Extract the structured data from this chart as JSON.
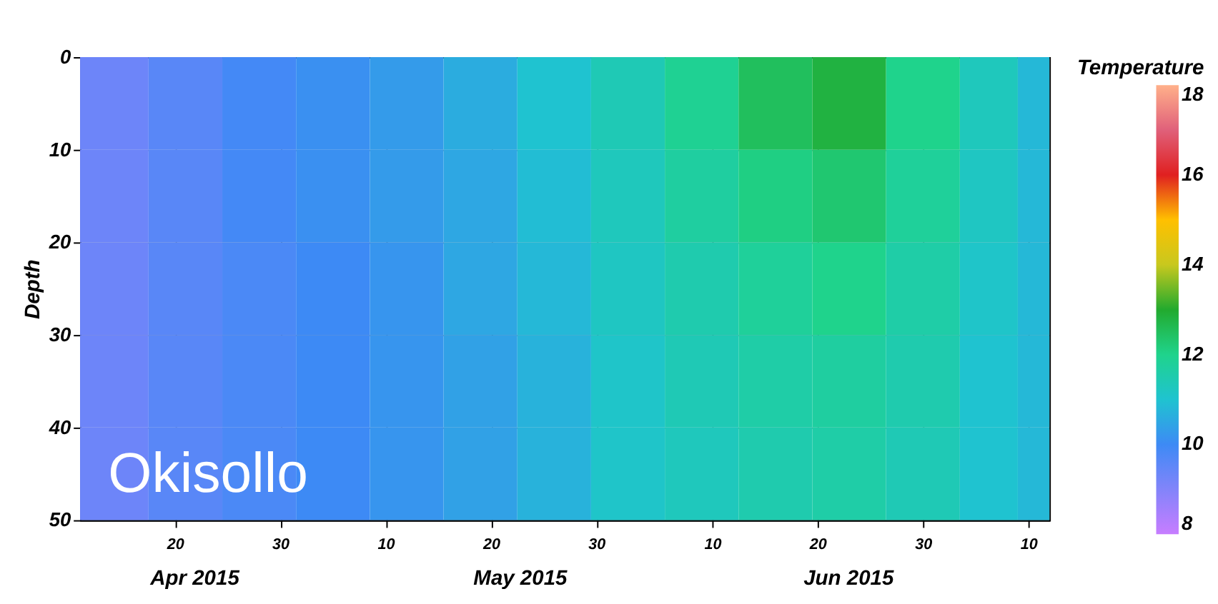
{
  "chart_data": {
    "type": "heatmap",
    "ylabel": "Depth",
    "clabel": "Temperature",
    "x": [
      "2015-04-14",
      "2015-04-21",
      "2015-04-28",
      "2015-05-05",
      "2015-05-12",
      "2015-05-19",
      "2015-05-26",
      "2015-06-02",
      "2015-06-09",
      "2015-06-16",
      "2015-06-23",
      "2015-06-30",
      "2015-07-07",
      "2015-07-11"
    ],
    "cells": [
      [
        9.3,
        9.6,
        9.9,
        10.1,
        10.3,
        10.6,
        11.0,
        11.4,
        11.9,
        12.5,
        12.8,
        12.0,
        11.3,
        10.8
      ],
      [
        9.3,
        9.6,
        9.9,
        10.1,
        10.3,
        10.5,
        10.9,
        11.3,
        11.7,
        12.1,
        12.3,
        11.8,
        11.2,
        10.8
      ],
      [
        9.3,
        9.6,
        9.8,
        10.0,
        10.2,
        10.5,
        10.8,
        11.2,
        11.5,
        11.8,
        12.0,
        11.6,
        11.1,
        10.8
      ],
      [
        9.3,
        9.6,
        9.8,
        10.0,
        10.2,
        10.4,
        10.7,
        11.1,
        11.4,
        11.6,
        11.7,
        11.5,
        11.0,
        10.8
      ],
      [
        9.3,
        9.6,
        9.8,
        10.0,
        10.2,
        10.4,
        10.7,
        11.1,
        11.3,
        11.5,
        11.6,
        11.4,
        11.0,
        10.8
      ]
    ],
    "xlim": [
      "2015-04-11",
      "2015-07-12"
    ],
    "xticks": [
      {
        "value": "2015-04-20",
        "label": "20"
      },
      {
        "value": "2015-04-30",
        "label": "30"
      },
      {
        "value": "2015-05-10",
        "label": "10"
      },
      {
        "value": "2015-05-20",
        "label": "20"
      },
      {
        "value": "2015-05-30",
        "label": "30"
      },
      {
        "value": "2015-06-10",
        "label": "10"
      },
      {
        "value": "2015-06-20",
        "label": "20"
      },
      {
        "value": "2015-06-30",
        "label": "30"
      },
      {
        "value": "2015-07-10",
        "label": "10"
      }
    ],
    "ylim": [
      50,
      0
    ],
    "yticks": [
      0,
      10,
      20,
      30,
      40,
      50
    ],
    "clim": [
      8,
      18
    ],
    "cticks": [
      8,
      10,
      12,
      14,
      16,
      18
    ],
    "grid": true,
    "annotations": [
      "Okisollo",
      "Apr 2015",
      "May 2015",
      "Jun 2015"
    ]
  }
}
